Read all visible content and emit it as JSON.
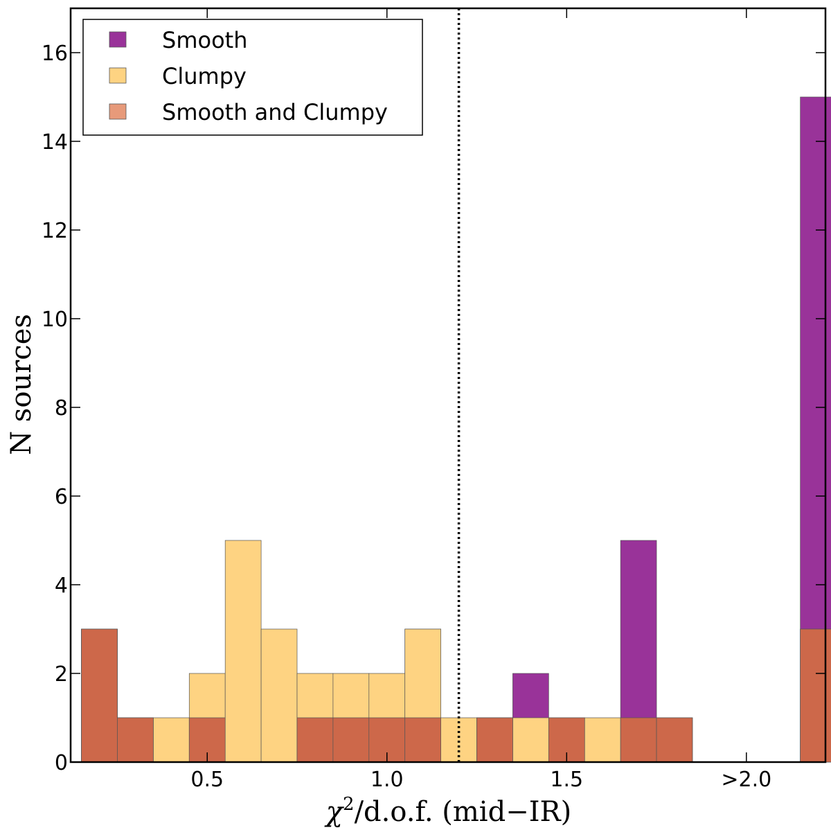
{
  "chart_data": {
    "type": "bar",
    "stacked": "overlay",
    "title": "",
    "xlabel": "χ²/d.o.f. (mid−IR)",
    "xlabel_parts": {
      "symbol": "χ",
      "superscript": "2",
      "rest": "/d.o.f. (mid−IR)"
    },
    "ylabel": "N sources",
    "xlim": [
      0.12,
      2.22
    ],
    "ylim": [
      0,
      17
    ],
    "bin_width": 0.1,
    "bin_starts": [
      0.15,
      0.25,
      0.35,
      0.45,
      0.55,
      0.65,
      0.75,
      0.85,
      0.95,
      1.05,
      1.15,
      1.25,
      1.35,
      1.45,
      1.55,
      1.65,
      1.75,
      1.85,
      1.95,
      2.05,
      2.15
    ],
    "x_ticks": [
      {
        "value": 0.5,
        "label": "0.5"
      },
      {
        "value": 1.0,
        "label": "1.0"
      },
      {
        "value": 1.5,
        "label": "1.5"
      },
      {
        "value": 2.0,
        "label": ">2.0"
      }
    ],
    "y_ticks": [
      0,
      2,
      4,
      6,
      8,
      10,
      12,
      14,
      16
    ],
    "threshold_line": {
      "x": 1.2,
      "style": "dotted"
    },
    "series": [
      {
        "name": "Smooth",
        "color": "#993399",
        "values": [
          3,
          1,
          0,
          1,
          0,
          0,
          1,
          1,
          1,
          3,
          0,
          1,
          2,
          0,
          0,
          5,
          1,
          0,
          0,
          0,
          15
        ]
      },
      {
        "name": "Clumpy",
        "color": "#FED382",
        "values": [
          3,
          1,
          1,
          2,
          5,
          3,
          2,
          2,
          2,
          3,
          1,
          1,
          1,
          1,
          1,
          0,
          0,
          0,
          0,
          0,
          3
        ]
      },
      {
        "name": "Smooth and Clumpy",
        "color": "#CD684A",
        "values": [
          3,
          1,
          0,
          1,
          0,
          0,
          1,
          1,
          1,
          1,
          0,
          1,
          0,
          1,
          0,
          1,
          1,
          0,
          0,
          0,
          3
        ]
      }
    ],
    "legend": {
      "position": "top-left",
      "items": [
        {
          "label": "Smooth",
          "color": "#993399"
        },
        {
          "label": "Clumpy",
          "color": "#FED382"
        },
        {
          "label": "Smooth and Clumpy",
          "color": "#E79A7A"
        }
      ]
    }
  }
}
